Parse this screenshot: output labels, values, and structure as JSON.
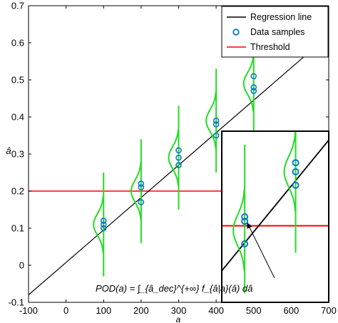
{
  "chart_data": {
    "type": "line",
    "xlabel": "a",
    "ylabel": "â",
    "xlim": [
      -100,
      700
    ],
    "ylim": [
      -0.1,
      0.7
    ],
    "xticks": [
      -100,
      0,
      100,
      200,
      300,
      400,
      500,
      600,
      700
    ],
    "yticks": [
      -0.1,
      0,
      0.1,
      0.2,
      0.3,
      0.4,
      0.5,
      0.6,
      0.7
    ],
    "xtick_labels": [
      "-100",
      "0",
      "100",
      "200",
      "300",
      "400",
      "500",
      "600",
      "700"
    ],
    "ytick_labels": [
      "-0.1",
      "0",
      "0.1",
      "0.2",
      "0.3",
      "0.4",
      "0.5",
      "0.6",
      "0.7"
    ],
    "grid": false,
    "legend_position": "top-right",
    "legend": [
      "Regression line",
      "Data samples",
      "Threshold"
    ],
    "regression_line": {
      "name": "Regression line",
      "color": "#000000",
      "x": [
        -100,
        700
      ],
      "y": [
        -0.08,
        0.62
      ]
    },
    "threshold": {
      "name": "Threshold",
      "color": "#ff0000",
      "y": 0.2
    },
    "data_samples": {
      "name": "Data samples",
      "color": "#0b7bc1",
      "points": [
        {
          "x": 100,
          "y": 0.11
        },
        {
          "x": 100,
          "y": 0.12
        },
        {
          "x": 100,
          "y": 0.1
        },
        {
          "x": 200,
          "y": 0.22
        },
        {
          "x": 200,
          "y": 0.21
        },
        {
          "x": 200,
          "y": 0.17
        },
        {
          "x": 300,
          "y": 0.31
        },
        {
          "x": 300,
          "y": 0.29
        },
        {
          "x": 300,
          "y": 0.27
        },
        {
          "x": 400,
          "y": 0.38
        },
        {
          "x": 400,
          "y": 0.39
        },
        {
          "x": 400,
          "y": 0.35
        },
        {
          "x": 500,
          "y": 0.51
        },
        {
          "x": 500,
          "y": 0.48
        },
        {
          "x": 500,
          "y": 0.47
        }
      ]
    },
    "distributions": {
      "color": "#22dd22",
      "items": [
        {
          "x": 100,
          "mean": 0.11,
          "ymin": -0.03,
          "ymax": 0.25
        },
        {
          "x": 200,
          "mean": 0.2,
          "ymin": 0.06,
          "ymax": 0.34
        },
        {
          "x": 300,
          "mean": 0.29,
          "ymin": 0.15,
          "ymax": 0.43
        },
        {
          "x": 400,
          "mean": 0.39,
          "ymin": 0.25,
          "ymax": 0.53
        },
        {
          "x": 500,
          "mean": 0.49,
          "ymin": 0.35,
          "ymax": 0.63
        }
      ]
    },
    "inset": {
      "points": [
        {
          "x": 500,
          "y": 0.13
        },
        {
          "x": 500,
          "y": 0.12
        },
        {
          "x": 500,
          "y": 0.07
        },
        {
          "x": 600,
          "y": 0.25
        },
        {
          "x": 600,
          "y": 0.23
        },
        {
          "x": 600,
          "y": 0.2
        }
      ],
      "distributions": [
        {
          "x": 500,
          "mean": 0.1,
          "ymin": -0.04,
          "ymax": 0.29
        },
        {
          "x": 600,
          "mean": 0.23,
          "ymin": 0.05,
          "ymax": 0.37
        }
      ],
      "regression": {
        "x": [
          455,
          665
        ],
        "y": [
          0.01,
          0.3
        ]
      },
      "threshold": 0.11
    },
    "annotation": "POD(a) = ∫_{â_dec}^{+∞} f_{â|a}(â) dâ"
  }
}
